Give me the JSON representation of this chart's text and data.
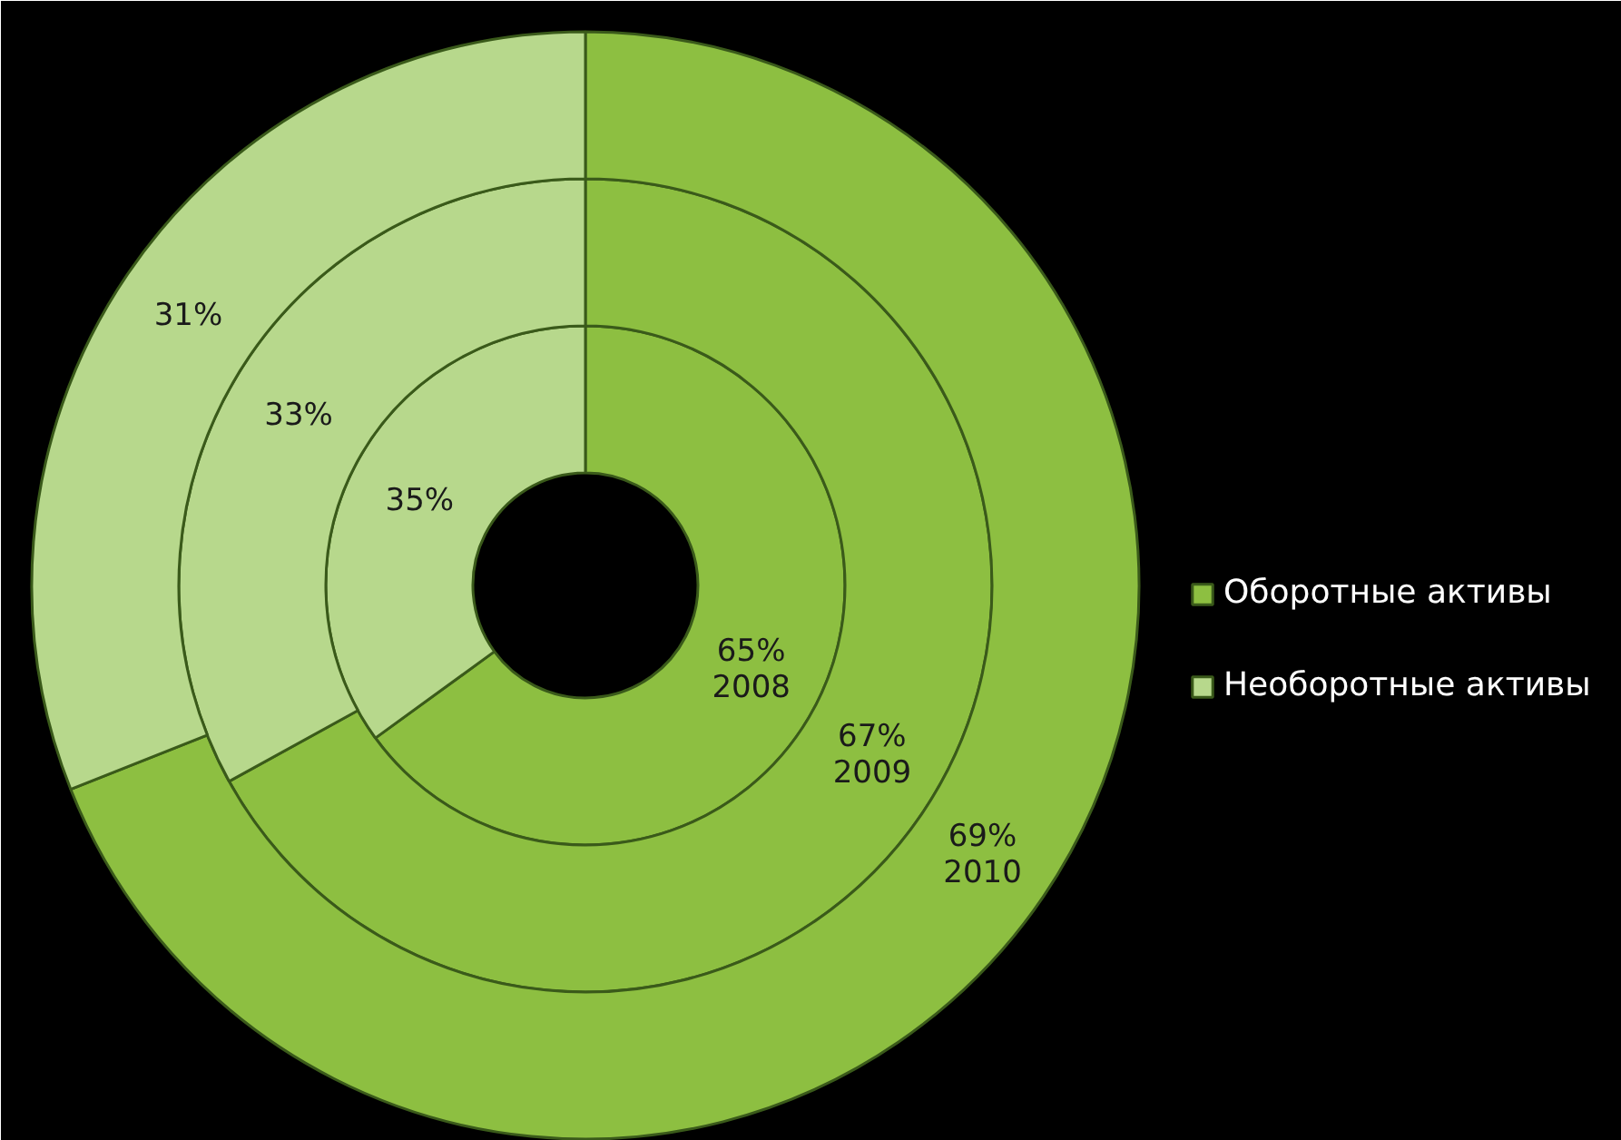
{
  "chart_data": {
    "type": "donut",
    "categories": [
      "Оборотные активы",
      "Необоротные активы"
    ],
    "colors": [
      "#8dbf41",
      "#b7d88c"
    ],
    "series": [
      {
        "name": "2008",
        "values": [
          65,
          35
        ],
        "value_labels": [
          "65%",
          "35%"
        ]
      },
      {
        "name": "2009",
        "values": [
          67,
          33
        ],
        "value_labels": [
          "67%",
          "33%"
        ]
      },
      {
        "name": "2010",
        "values": [
          69,
          31
        ],
        "value_labels": [
          "69%",
          "31%"
        ]
      }
    ],
    "legend": "right"
  }
}
